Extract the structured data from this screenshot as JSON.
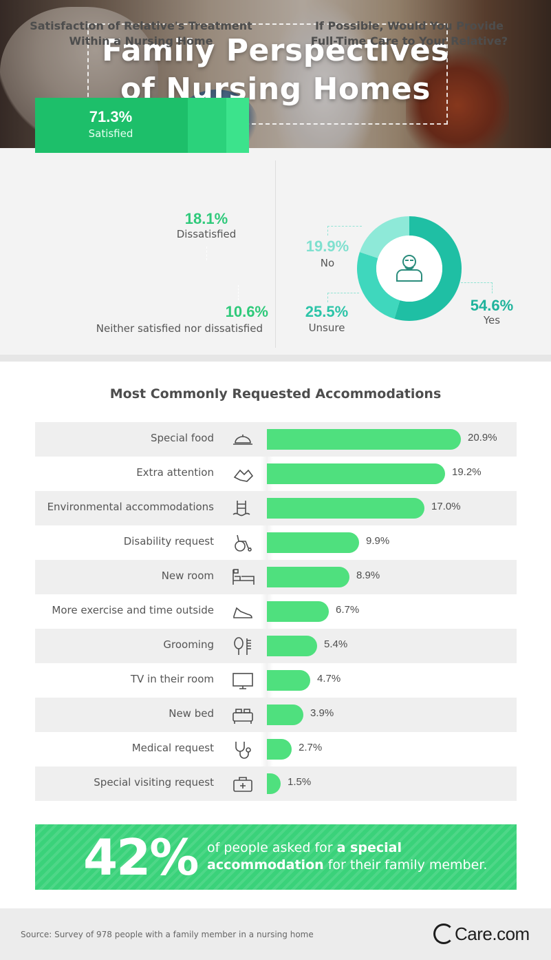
{
  "header": {
    "title_line1": "Family Perspectives",
    "title_line2": "of Nursing Homes"
  },
  "satisfaction": {
    "title_line1": "Satisfaction of Relative's Treatment",
    "title_line2": "Within a Nursing Home",
    "segments": [
      {
        "pct": "71.3%",
        "label": "Satisfied",
        "value": 71.3,
        "color": "#1dbf6a"
      },
      {
        "pct": "18.1%",
        "label": "Dissatisfied",
        "value": 18.1,
        "color": "#2bd27b"
      },
      {
        "pct": "10.6%",
        "label": "Neither satisfied nor dissatisfied",
        "value": 10.6,
        "color": "#3ce38c"
      }
    ]
  },
  "care": {
    "title_line1": "If Possible, Would You Provide",
    "title_line2": "Full-Time Care to Your Relative?",
    "segments": [
      {
        "pct": "54.6%",
        "label": "Yes",
        "value": 54.6,
        "color": "#1fbfa4"
      },
      {
        "pct": "25.5%",
        "label": "Unsure",
        "value": 25.5,
        "color": "#3fd7bd"
      },
      {
        "pct": "19.9%",
        "label": "No",
        "value": 19.9,
        "color": "#8ee9d8"
      }
    ],
    "center_icon": "elderly-man-icon"
  },
  "accommodations": {
    "title": "Most Commonly Requested Accommodations",
    "bar_color": "#4fe07e",
    "items": [
      {
        "label": "Special food",
        "pct": "20.9%",
        "value": 20.9,
        "icon": "cloche-icon"
      },
      {
        "label": "Extra attention",
        "pct": "19.2%",
        "value": 19.2,
        "icon": "holding-hands-icon"
      },
      {
        "label": "Environmental accommodations",
        "pct": "17.0%",
        "value": 17.0,
        "icon": "pool-ladder-icon"
      },
      {
        "label": "Disability request",
        "pct": "9.9%",
        "value": 9.9,
        "icon": "wheelchair-icon"
      },
      {
        "label": "New room",
        "pct": "8.9%",
        "value": 8.9,
        "icon": "hospital-bed-icon"
      },
      {
        "label": "More exercise and time outside",
        "pct": "6.7%",
        "value": 6.7,
        "icon": "sneaker-icon"
      },
      {
        "label": "Grooming",
        "pct": "5.4%",
        "value": 5.4,
        "icon": "brush-comb-icon"
      },
      {
        "label": "TV in their room",
        "pct": "4.7%",
        "value": 4.7,
        "icon": "tv-icon"
      },
      {
        "label": "New bed",
        "pct": "3.9%",
        "value": 3.9,
        "icon": "bed-icon"
      },
      {
        "label": "Medical request",
        "pct": "2.7%",
        "value": 2.7,
        "icon": "stethoscope-icon"
      },
      {
        "label": "Special visiting request",
        "pct": "1.5%",
        "value": 1.5,
        "icon": "first-aid-kit-icon"
      }
    ]
  },
  "chart_data": [
    {
      "type": "bar",
      "title": "Satisfaction of Relative's Treatment Within a Nursing Home",
      "categories": [
        "Satisfied",
        "Dissatisfied",
        "Neither satisfied nor dissatisfied"
      ],
      "values": [
        71.3,
        18.1,
        10.6
      ],
      "stacked": true,
      "unit": "%"
    },
    {
      "type": "pie",
      "title": "If Possible, Would You Provide Full-Time Care to Your Relative?",
      "categories": [
        "Yes",
        "Unsure",
        "No"
      ],
      "values": [
        54.6,
        25.5,
        19.9
      ],
      "unit": "%"
    },
    {
      "type": "bar",
      "title": "Most Commonly Requested Accommodations",
      "orientation": "horizontal",
      "categories": [
        "Special food",
        "Extra attention",
        "Environmental accommodations",
        "Disability request",
        "New room",
        "More exercise and time outside",
        "Grooming",
        "TV in their room",
        "New bed",
        "Medical request",
        "Special visiting request"
      ],
      "values": [
        20.9,
        19.2,
        17.0,
        9.9,
        8.9,
        6.7,
        5.4,
        4.7,
        3.9,
        2.7,
        1.5
      ],
      "unit": "%"
    }
  ],
  "banner": {
    "big": "42%",
    "text_pre": "of people asked for ",
    "text_bold": "a special accommodation",
    "text_post": " for their family member."
  },
  "footer": {
    "source": "Source: Survey of 978 people with a family member in a nursing home",
    "logo": "Care.com"
  }
}
